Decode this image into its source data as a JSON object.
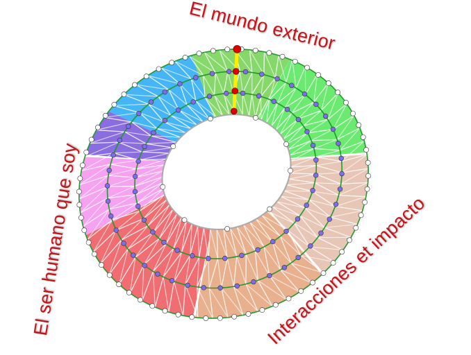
{
  "labels": {
    "top": "El mundo exterior",
    "left": "El ser humano que soy",
    "bottom_right": "Interacciones et impacto"
  },
  "sectors": [
    {
      "name": "blue",
      "color": "#45b5f5"
    },
    {
      "name": "green",
      "color": "#86d86a"
    },
    {
      "name": "bright-green",
      "color": "#6aea6e"
    },
    {
      "name": "pale-tan",
      "color": "#e8c6b6"
    },
    {
      "name": "tan",
      "color": "#e9b08e"
    },
    {
      "name": "red",
      "color": "#f06e72"
    },
    {
      "name": "pink",
      "color": "#f6a2f0"
    },
    {
      "name": "purple",
      "color": "#8a6ee0"
    }
  ],
  "colors": {
    "ring_line": "#1f9a2a",
    "inner_node": "#7b6ee8",
    "edge_node": "#ffffff",
    "path_line": "#ffee00",
    "path_node": "#e00000",
    "text": "#c0161c"
  }
}
